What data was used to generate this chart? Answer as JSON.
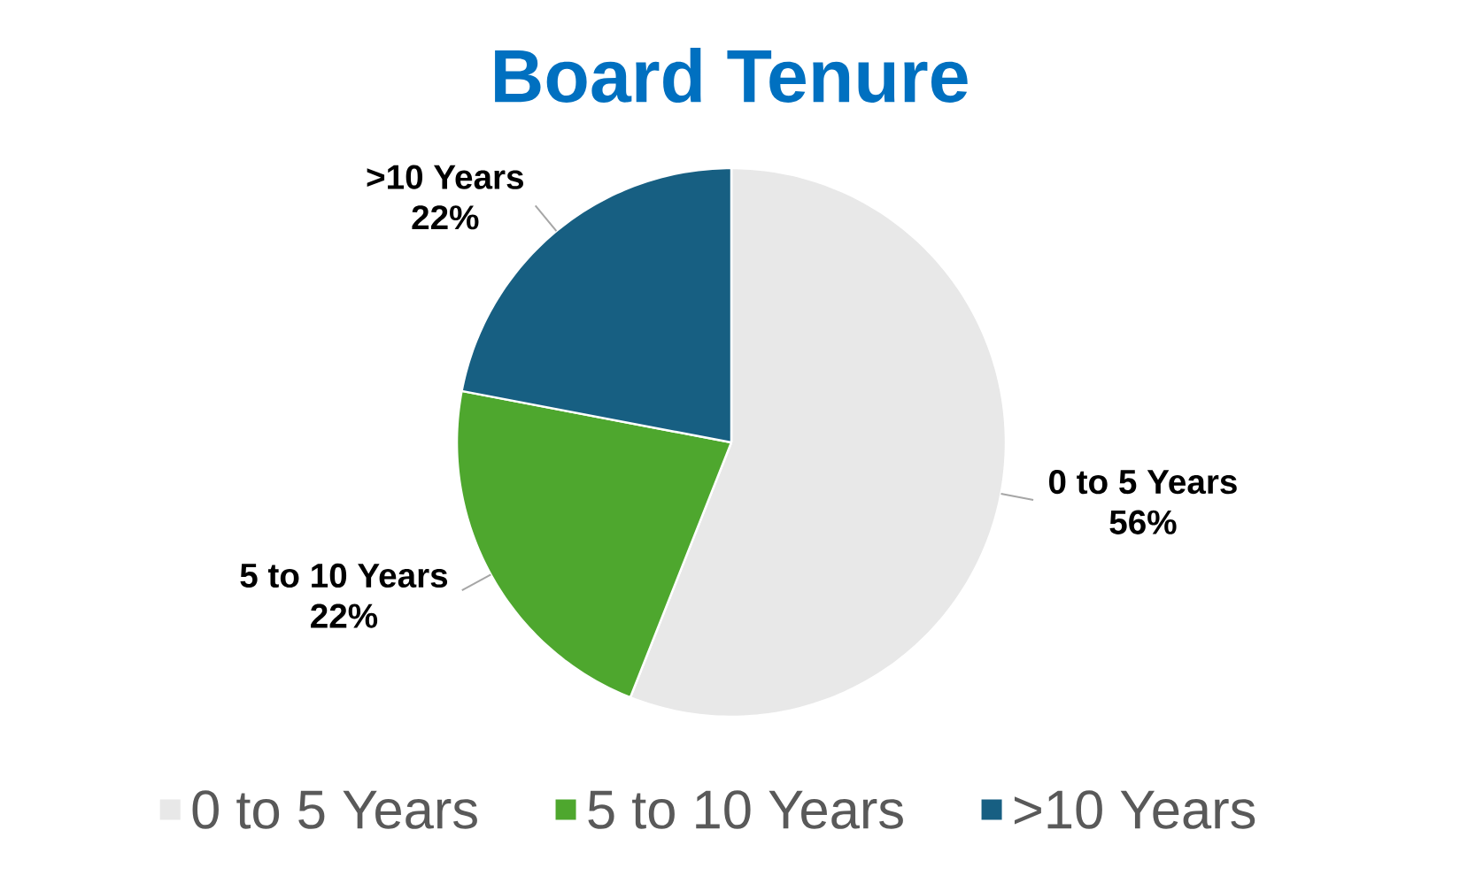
{
  "chart_data": {
    "type": "pie",
    "title": "Board Tenure",
    "categories": [
      "0 to 5 Years",
      "5 to 10 Years",
      ">10 Years"
    ],
    "values": [
      56,
      22,
      22
    ],
    "value_labels": [
      "56%",
      "22%",
      "22%"
    ],
    "colors": [
      "#e8e8e8",
      "#4ea72e",
      "#175f82"
    ],
    "legend": "bottom"
  }
}
